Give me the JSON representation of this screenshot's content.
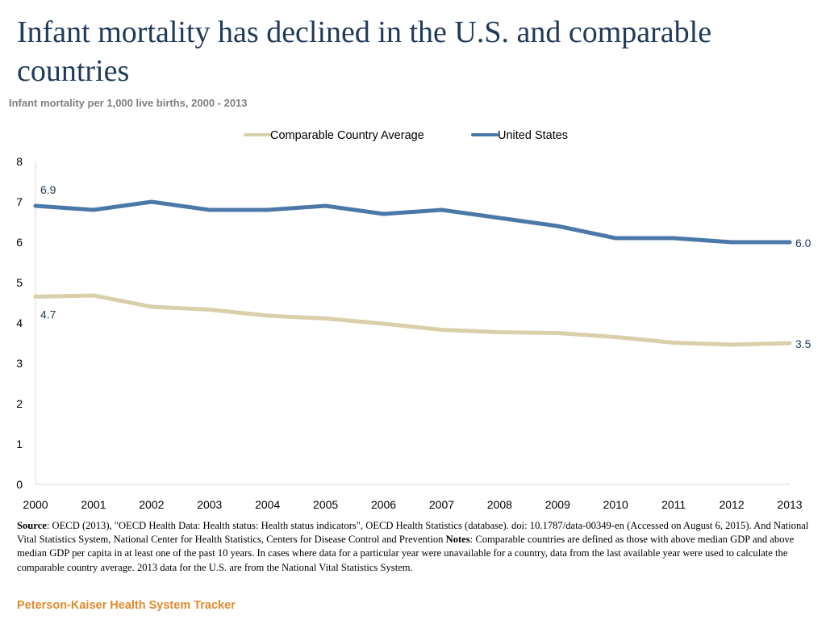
{
  "page": {
    "title": "Infant mortality has declined in the U.S. and comparable countries",
    "subtitle": "Infant mortality per 1,000 live births, 2000 - 2013"
  },
  "chart_data": {
    "type": "line",
    "title": "Infant mortality has declined in the U.S. and comparable countries",
    "subtitle": "Infant mortality per 1,000 live births, 2000 - 2013",
    "xlabel": "",
    "ylabel": "",
    "x": [
      2000,
      2001,
      2002,
      2003,
      2004,
      2005,
      2006,
      2007,
      2008,
      2009,
      2010,
      2011,
      2012,
      2013
    ],
    "ylim": [
      0,
      8
    ],
    "yticks": [
      0,
      1,
      2,
      3,
      4,
      5,
      6,
      7,
      8
    ],
    "grid": false,
    "legend_position": "top-center",
    "series": [
      {
        "name": "Comparable Country Average",
        "color": "#d9cfa9",
        "values": [
          4.65,
          4.68,
          4.4,
          4.33,
          4.18,
          4.11,
          3.98,
          3.83,
          3.77,
          3.75,
          3.65,
          3.51,
          3.46,
          3.5
        ],
        "labels": [
          {
            "index": 0,
            "text": "4.7"
          },
          {
            "index": 13,
            "text": "3.5"
          }
        ]
      },
      {
        "name": "United States",
        "color": "#4a78a8",
        "values": [
          6.9,
          6.8,
          7.0,
          6.8,
          6.8,
          6.9,
          6.7,
          6.8,
          6.6,
          6.4,
          6.1,
          6.1,
          6.0,
          6.0
        ],
        "labels": [
          {
            "index": 0,
            "text": "6.9"
          },
          {
            "index": 13,
            "text": "6.0"
          }
        ]
      }
    ],
    "label_color": "#1f3a5a",
    "axis_color": "#d9d9d9"
  },
  "notes": {
    "source_label": "Source",
    "source_text": ": OECD (2013), \"OECD Health Data: Health status: Health status indicators\", OECD Health Statistics (database). doi: 10.1787/data-00349-en (Accessed on August 6, 2015). And National Vital Statistics System, National Center for Health Statistics, Centers for Disease Control and Prevention ",
    "notes_label": "Notes",
    "notes_text": ": Comparable countries are defined as those with above median GDP and above median GDP per capita in at least one of the past 10 years. In cases where data for a particular year were unavailable for a country, data from the last available year were used to calculate the comparable country average. 2013 data for the U.S. are from the National Vital Statistics System."
  },
  "footer": {
    "brand": "Peterson-Kaiser Health System Tracker"
  }
}
